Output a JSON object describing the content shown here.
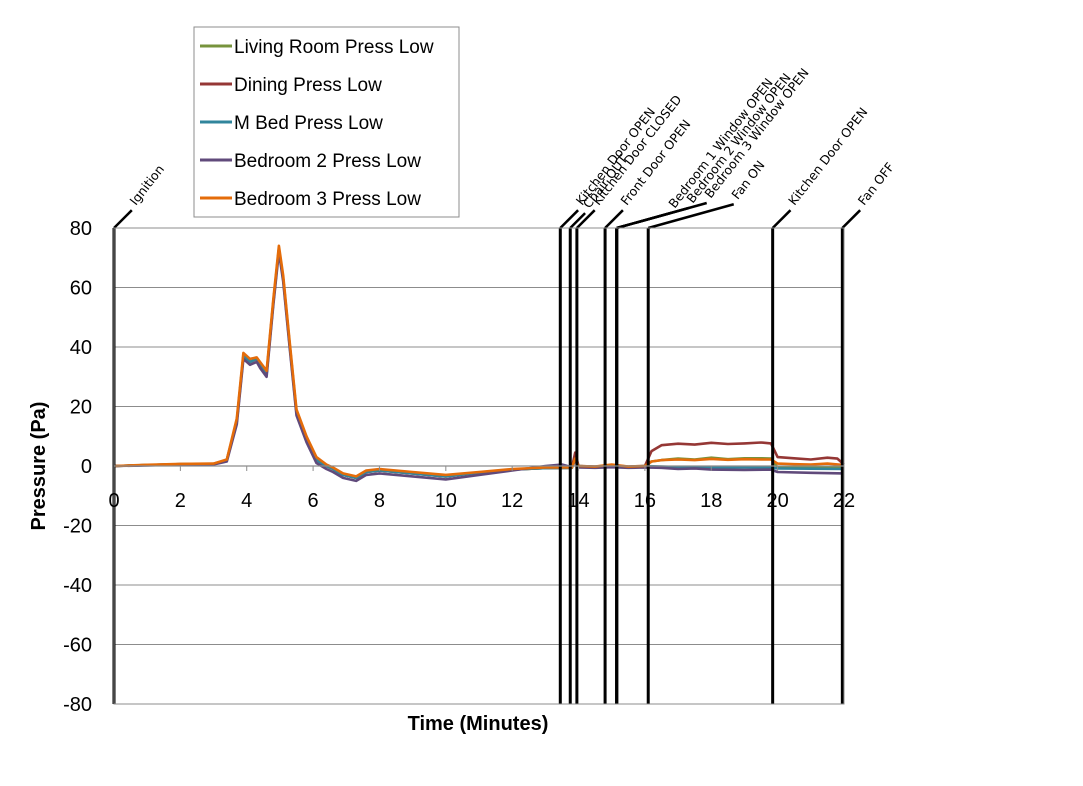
{
  "chart_data": {
    "type": "line",
    "xlabel": "Time (Minutes)",
    "ylabel": "Pressure (Pa)",
    "xlim": [
      0,
      22
    ],
    "ylim": [
      -80,
      80
    ],
    "xticks": [
      0,
      2,
      4,
      6,
      8,
      10,
      12,
      14,
      16,
      18,
      20,
      22
    ],
    "yticks": [
      80,
      60,
      40,
      20,
      0,
      -20,
      -40,
      -60,
      -80
    ],
    "grid": "horizontal",
    "legend_position": "top-left",
    "series": [
      {
        "name": "Living Room Press Low",
        "color": "#77933C",
        "points": [
          [
            0,
            0
          ],
          [
            1,
            0.3
          ],
          [
            2,
            0.6
          ],
          [
            3,
            0.7
          ],
          [
            3.4,
            2
          ],
          [
            3.7,
            15
          ],
          [
            3.9,
            37
          ],
          [
            4.1,
            35
          ],
          [
            4.3,
            36
          ],
          [
            4.4,
            34
          ],
          [
            4.6,
            31
          ],
          [
            4.8,
            55
          ],
          [
            4.97,
            73
          ],
          [
            5.1,
            63
          ],
          [
            5.3,
            40
          ],
          [
            5.5,
            18
          ],
          [
            5.8,
            9
          ],
          [
            6.1,
            2
          ],
          [
            6.4,
            0
          ],
          [
            6.6,
            -1
          ],
          [
            6.9,
            -3
          ],
          [
            7.3,
            -4
          ],
          [
            7.6,
            -2
          ],
          [
            8,
            -1.5
          ],
          [
            9,
            -2.5
          ],
          [
            10,
            -3.5
          ],
          [
            11,
            -2.2
          ],
          [
            12,
            -1.2
          ],
          [
            13,
            -0.7
          ],
          [
            13.8,
            -0.6
          ],
          [
            13.9,
            3
          ],
          [
            14,
            0
          ],
          [
            14.5,
            -0.3
          ],
          [
            15,
            0.1
          ],
          [
            15.5,
            -0.3
          ],
          [
            16,
            0
          ],
          [
            16.2,
            1.5
          ],
          [
            16.5,
            2
          ],
          [
            17,
            2.5
          ],
          [
            17.5,
            2.2
          ],
          [
            18,
            2.8
          ],
          [
            18.5,
            2.3
          ],
          [
            19,
            2.6
          ],
          [
            19.5,
            2.6
          ],
          [
            19.8,
            2.5
          ],
          [
            20,
            -0.5
          ],
          [
            20.5,
            -0.3
          ],
          [
            21,
            -0.2
          ],
          [
            21.5,
            -0.4
          ],
          [
            22,
            -0.2
          ]
        ]
      },
      {
        "name": "Dining Press Low",
        "color": "#953735",
        "points": [
          [
            0,
            0
          ],
          [
            1,
            0.3
          ],
          [
            2,
            0.6
          ],
          [
            3,
            0.7
          ],
          [
            3.4,
            2
          ],
          [
            3.7,
            15
          ],
          [
            3.9,
            37
          ],
          [
            4.1,
            35
          ],
          [
            4.3,
            36
          ],
          [
            4.4,
            34
          ],
          [
            4.6,
            31
          ],
          [
            4.8,
            55
          ],
          [
            4.97,
            73
          ],
          [
            5.1,
            63
          ],
          [
            5.3,
            40
          ],
          [
            5.5,
            18
          ],
          [
            5.8,
            9
          ],
          [
            6.1,
            2
          ],
          [
            6.4,
            0
          ],
          [
            6.6,
            -1
          ],
          [
            6.9,
            -3
          ],
          [
            7.3,
            -4
          ],
          [
            7.6,
            -2
          ],
          [
            8,
            -1.5
          ],
          [
            9,
            -2.5
          ],
          [
            10,
            -3.5
          ],
          [
            11,
            -2.2
          ],
          [
            12,
            -1.2
          ],
          [
            13,
            -0.7
          ],
          [
            13.8,
            -0.6
          ],
          [
            13.9,
            4.5
          ],
          [
            14,
            0
          ],
          [
            14.5,
            -0.2
          ],
          [
            15,
            0.2
          ],
          [
            15.5,
            -0.2
          ],
          [
            16,
            0
          ],
          [
            16.2,
            5
          ],
          [
            16.5,
            7
          ],
          [
            17,
            7.5
          ],
          [
            17.5,
            7.2
          ],
          [
            18,
            7.8
          ],
          [
            18.5,
            7.4
          ],
          [
            19,
            7.6
          ],
          [
            19.5,
            7.9
          ],
          [
            19.8,
            7.6
          ],
          [
            20,
            3
          ],
          [
            20.5,
            2.6
          ],
          [
            21,
            2.2
          ],
          [
            21.5,
            2.8
          ],
          [
            21.8,
            2.5
          ],
          [
            22,
            0.5
          ]
        ]
      },
      {
        "name": "M Bed Press Low",
        "color": "#31859C",
        "points": [
          [
            0,
            0
          ],
          [
            1,
            0.3
          ],
          [
            2,
            0.6
          ],
          [
            3,
            0.7
          ],
          [
            3.4,
            2
          ],
          [
            3.7,
            15
          ],
          [
            3.9,
            37
          ],
          [
            4.1,
            35
          ],
          [
            4.3,
            36
          ],
          [
            4.4,
            34
          ],
          [
            4.6,
            31
          ],
          [
            4.8,
            55
          ],
          [
            4.97,
            73
          ],
          [
            5.1,
            63
          ],
          [
            5.3,
            40
          ],
          [
            5.5,
            18
          ],
          [
            5.8,
            9
          ],
          [
            6.1,
            2
          ],
          [
            6.4,
            0
          ],
          [
            6.6,
            -1
          ],
          [
            6.9,
            -3
          ],
          [
            7.3,
            -4
          ],
          [
            7.6,
            -2
          ],
          [
            8,
            -1.5
          ],
          [
            9,
            -2.5
          ],
          [
            10,
            -3.5
          ],
          [
            11,
            -2.2
          ],
          [
            12,
            -1.2
          ],
          [
            13,
            -0.7
          ],
          [
            13.8,
            -0.6
          ],
          [
            13.9,
            2
          ],
          [
            14,
            0
          ],
          [
            14.5,
            -0.3
          ],
          [
            15,
            0
          ],
          [
            15.5,
            -0.3
          ],
          [
            16,
            0
          ],
          [
            16.5,
            -0.2
          ],
          [
            17,
            -0.4
          ],
          [
            18,
            -0.5
          ],
          [
            19,
            -0.5
          ],
          [
            19.8,
            -0.5
          ],
          [
            20,
            -0.8
          ],
          [
            21,
            -0.9
          ],
          [
            22,
            -1
          ]
        ]
      },
      {
        "name": "Bedroom 2 Press Low",
        "color": "#604A7B",
        "points": [
          [
            0,
            0
          ],
          [
            1,
            0.2
          ],
          [
            2,
            0.5
          ],
          [
            3,
            0.5
          ],
          [
            3.4,
            1.5
          ],
          [
            3.7,
            14
          ],
          [
            3.9,
            36
          ],
          [
            4.1,
            34
          ],
          [
            4.3,
            35
          ],
          [
            4.4,
            33
          ],
          [
            4.6,
            30
          ],
          [
            4.8,
            54
          ],
          [
            4.97,
            72
          ],
          [
            5.1,
            62
          ],
          [
            5.3,
            39
          ],
          [
            5.5,
            17
          ],
          [
            5.8,
            8
          ],
          [
            6.1,
            1
          ],
          [
            6.4,
            -1
          ],
          [
            6.6,
            -2
          ],
          [
            6.9,
            -4
          ],
          [
            7.3,
            -5
          ],
          [
            7.6,
            -3
          ],
          [
            8,
            -2.5
          ],
          [
            9,
            -3.5
          ],
          [
            10,
            -4.5
          ],
          [
            11,
            -3
          ],
          [
            12,
            -1.5
          ],
          [
            13,
            0
          ],
          [
            13.5,
            0.5
          ],
          [
            13.8,
            -0.4
          ],
          [
            13.9,
            2
          ],
          [
            14,
            -0.5
          ],
          [
            14.5,
            -0.6
          ],
          [
            15,
            -0.4
          ],
          [
            15.5,
            -0.6
          ],
          [
            16,
            -0.5
          ],
          [
            16.5,
            -0.6
          ],
          [
            17,
            -1
          ],
          [
            17.5,
            -0.8
          ],
          [
            18,
            -1.2
          ],
          [
            19,
            -1.3
          ],
          [
            19.8,
            -1.2
          ],
          [
            20,
            -2
          ],
          [
            21,
            -2.3
          ],
          [
            22,
            -2.5
          ]
        ]
      },
      {
        "name": "Bedroom 3 Press Low",
        "color": "#E46C0A",
        "points": [
          [
            0,
            0
          ],
          [
            1,
            0.4
          ],
          [
            2,
            0.7
          ],
          [
            3,
            0.8
          ],
          [
            3.4,
            2.2
          ],
          [
            3.7,
            16
          ],
          [
            3.9,
            38
          ],
          [
            4.1,
            36
          ],
          [
            4.3,
            36.5
          ],
          [
            4.4,
            35
          ],
          [
            4.6,
            32
          ],
          [
            4.8,
            56
          ],
          [
            4.97,
            74
          ],
          [
            5.1,
            64
          ],
          [
            5.3,
            41
          ],
          [
            5.5,
            19
          ],
          [
            5.8,
            10
          ],
          [
            6.1,
            3
          ],
          [
            6.4,
            0.5
          ],
          [
            6.6,
            -0.5
          ],
          [
            6.9,
            -2.5
          ],
          [
            7.3,
            -3.5
          ],
          [
            7.6,
            -1.5
          ],
          [
            8,
            -1
          ],
          [
            9,
            -2
          ],
          [
            10,
            -3
          ],
          [
            11,
            -2
          ],
          [
            12,
            -1
          ],
          [
            13,
            -0.5
          ],
          [
            13.8,
            -0.5
          ],
          [
            13.9,
            2.5
          ],
          [
            14,
            0
          ],
          [
            14.5,
            -0.2
          ],
          [
            15,
            0.5
          ],
          [
            15.5,
            -0.2
          ],
          [
            16,
            0
          ],
          [
            16.2,
            1.5
          ],
          [
            16.5,
            2
          ],
          [
            17,
            2.2
          ],
          [
            17.5,
            2
          ],
          [
            18,
            2.4
          ],
          [
            18.5,
            2.1
          ],
          [
            19,
            2.3
          ],
          [
            19.5,
            2.2
          ],
          [
            19.8,
            2.2
          ],
          [
            20,
            0.8
          ],
          [
            20.5,
            0.6
          ],
          [
            21,
            0.5
          ],
          [
            21.5,
            0.8
          ],
          [
            22,
            0.3
          ]
        ]
      }
    ],
    "events": [
      {
        "label": "Ignition",
        "x": 0
      },
      {
        "label": "Kitchen Door OPEN",
        "x": 13.45
      },
      {
        "label": "Chair OUT",
        "x": 13.75
      },
      {
        "label": "Kitchen Door CLOSED",
        "x": 13.95
      },
      {
        "label": "Front Door OPEN",
        "x": 14.8
      },
      {
        "label": "Bedroom 1 Window OPEN",
        "x": 15.15
      },
      {
        "label": "Bedroom 2 Window OPEN",
        "x": 15.15
      },
      {
        "label": "Bedroom 3 Window OPEN",
        "x": 15.15
      },
      {
        "label": "Fan ON",
        "x": 16.1
      },
      {
        "label": "Kitchen Door OPEN",
        "x": 19.85
      },
      {
        "label": "Fan OFF",
        "x": 21.95
      }
    ]
  }
}
